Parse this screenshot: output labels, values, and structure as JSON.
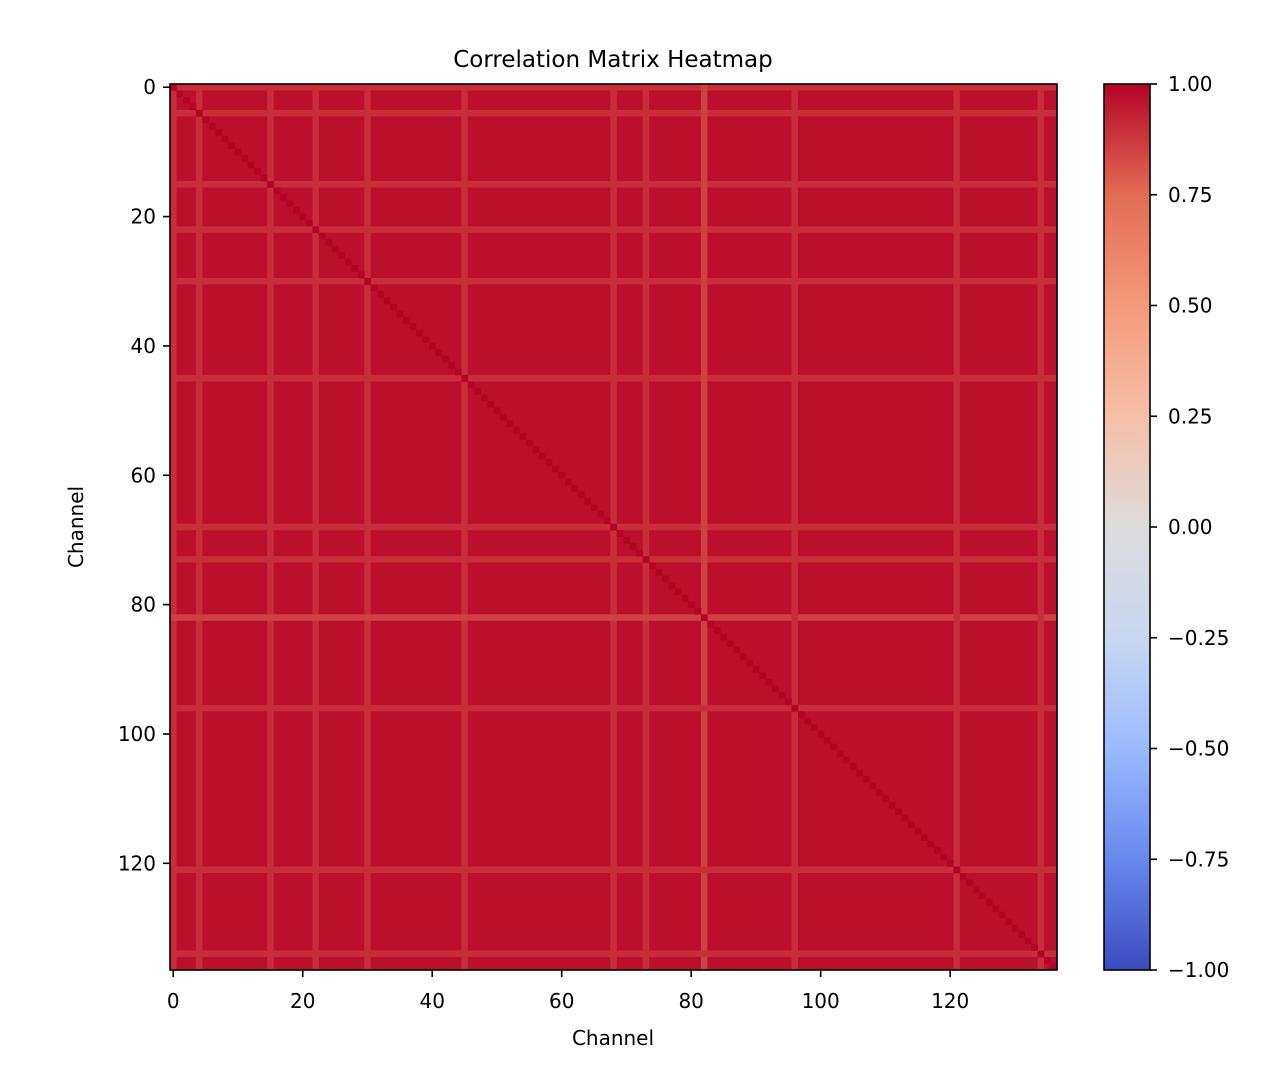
{
  "chart_data": {
    "type": "heatmap",
    "title": "Correlation Matrix Heatmap",
    "xlabel": "Channel",
    "ylabel": "Channel",
    "size": 137,
    "xlim": [
      0,
      136
    ],
    "ylim": [
      136,
      0
    ],
    "x_ticks": [
      0,
      20,
      40,
      60,
      80,
      100,
      120
    ],
    "y_ticks": [
      0,
      20,
      40,
      60,
      80,
      100,
      120
    ],
    "x_tick_labels": [
      "0",
      "20",
      "40",
      "60",
      "80",
      "100",
      "120"
    ],
    "y_tick_labels": [
      "0",
      "20",
      "40",
      "60",
      "80",
      "100",
      "120"
    ],
    "base_value": 0.97,
    "stripes": [
      {
        "channel": 0,
        "value": 0.9
      },
      {
        "channel": 4,
        "value": 0.9
      },
      {
        "channel": 15,
        "value": 0.9
      },
      {
        "channel": 22,
        "value": 0.9
      },
      {
        "channel": 30,
        "value": 0.9
      },
      {
        "channel": 45,
        "value": 0.9
      },
      {
        "channel": 68,
        "value": 0.9
      },
      {
        "channel": 73,
        "value": 0.9
      },
      {
        "channel": 82,
        "value": 0.85
      },
      {
        "channel": 96,
        "value": 0.9
      },
      {
        "channel": 121,
        "value": 0.9
      },
      {
        "channel": 134,
        "value": 0.9
      }
    ],
    "diagonal_value": 1.0,
    "colormap": "coolwarm",
    "colormap_stops": [
      "#3b4cc0",
      "#6788ee",
      "#9abbff",
      "#c9d7f0",
      "#dddcdc",
      "#f6bfa6",
      "#f49a7b",
      "#e36c55",
      "#b40426"
    ],
    "colorbar": {
      "vmin": -1.0,
      "vmax": 1.0,
      "ticks": [
        1.0,
        0.75,
        0.5,
        0.25,
        0.0,
        -0.25,
        -0.5,
        -0.75,
        -1.0
      ],
      "tick_labels": [
        "1.00",
        "0.75",
        "0.50",
        "0.25",
        "0.00",
        "−0.25",
        "−0.50",
        "−0.75",
        "−1.00"
      ]
    }
  }
}
